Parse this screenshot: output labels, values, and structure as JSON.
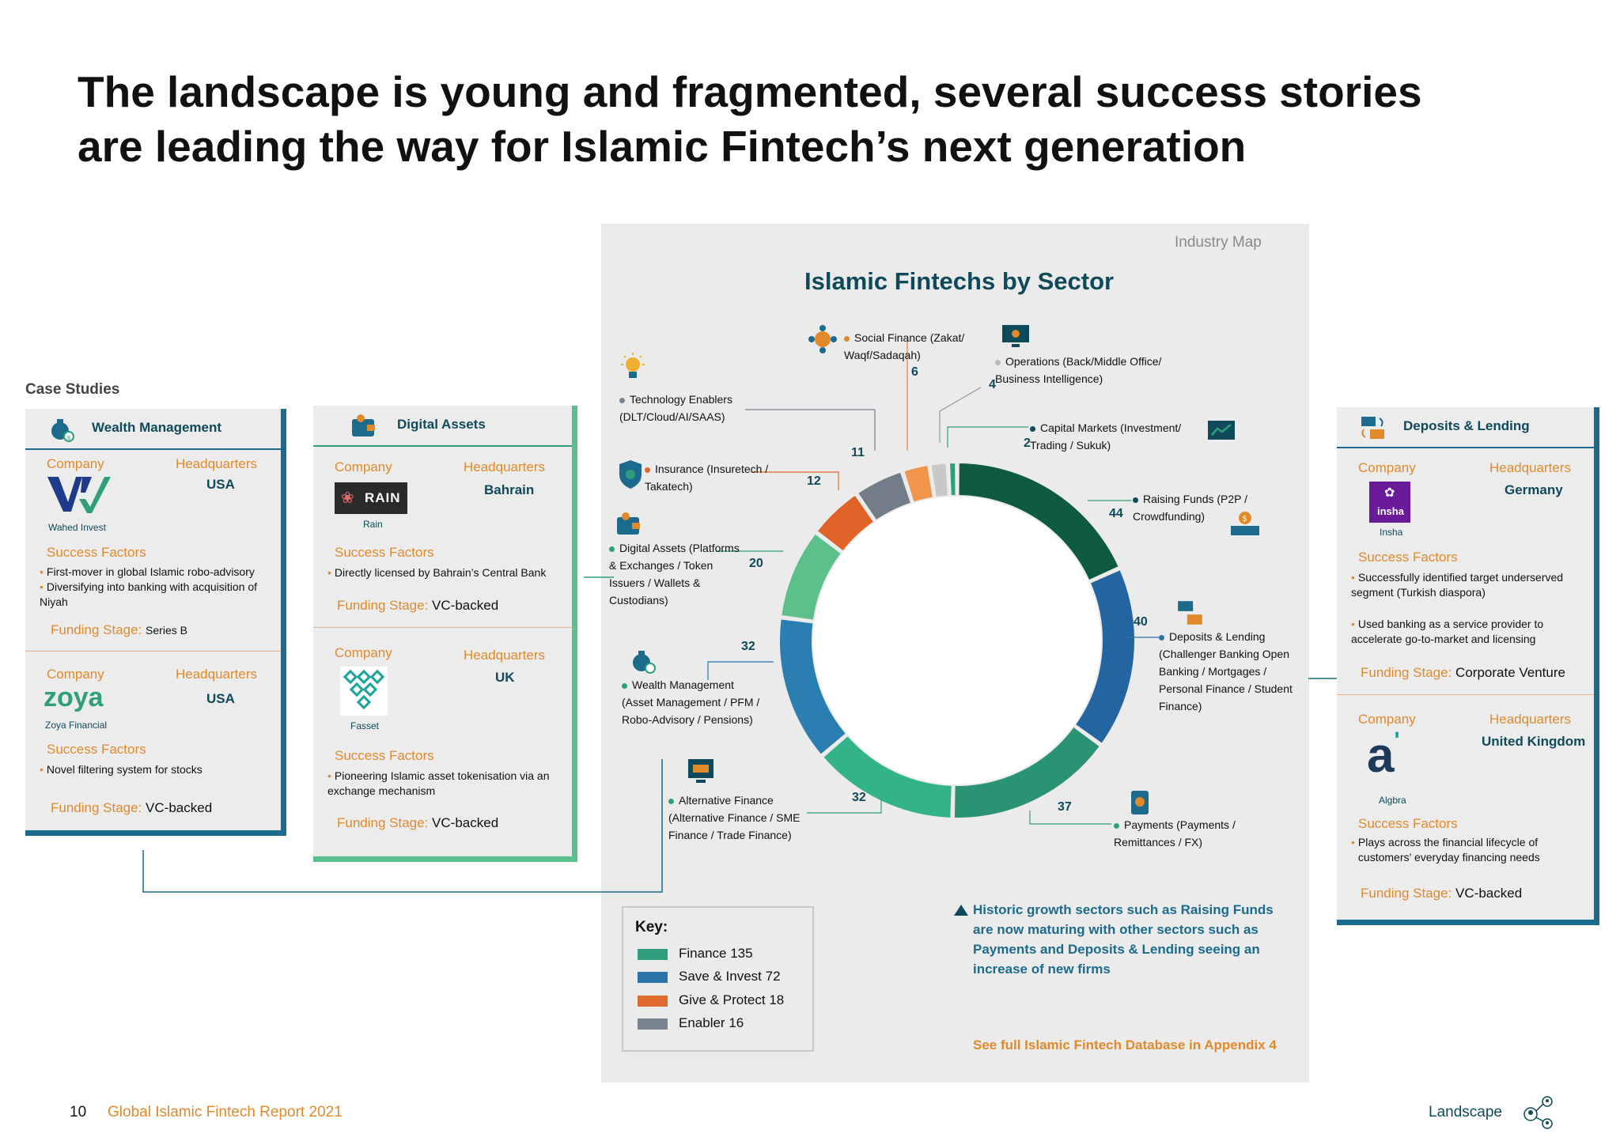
{
  "title": "The landscape is young and fragmented, several success stories are leading the way for Islamic Fintech’s next generation",
  "case_studies_label": "Case Studies",
  "colors": {
    "finance": "#2e9e7c",
    "save_invest": "#2a74a8",
    "give_protect": "#e06a2c",
    "enabler": "#7a8490",
    "orange": "#e08a2c",
    "teal_dark": "#0f4a5a"
  },
  "cards": {
    "wealth": {
      "header": "Wealth Management",
      "icon": "money-bag-icon",
      "company_label": "Company",
      "hq_label": "Headquarters",
      "success_label": "Success Factors",
      "funding_label": "Funding Stage:",
      "c1": {
        "name": "Wahed Invest",
        "hq": "USA",
        "factors": [
          "First-mover in global Islamic robo-advisory",
          "Diversifying into banking with acquisition of Niyah"
        ],
        "funding": "Series B"
      },
      "c2": {
        "name": "Zoya Financial",
        "logo_text": "zoya",
        "hq": "USA",
        "factors": [
          "Novel filtering system for stocks"
        ],
        "funding": "VC-backed"
      }
    },
    "digital": {
      "header": "Digital Assets",
      "icon": "wallet-icon",
      "company_label": "Company",
      "hq_label": "Headquarters",
      "success_label": "Success Factors",
      "funding_label": "Funding Stage:",
      "c1": {
        "name": "Rain",
        "logo_text": "RAIN",
        "hq": "Bahrain",
        "factors": [
          "Directly licensed by Bahrain’s Central Bank"
        ],
        "funding": "VC-backed"
      },
      "c2": {
        "name": "Fasset",
        "hq": "UK",
        "factors": [
          "Pioneering Islamic asset tokenisation via an exchange mechanism"
        ],
        "funding": "VC-backed"
      }
    },
    "deposits": {
      "header": "Deposits & Lending",
      "icon": "exchange-icon",
      "company_label": "Company",
      "hq_label": "Headquarters",
      "success_label": "Success Factors",
      "funding_label": "Funding Stage:",
      "c1": {
        "name": "Insha",
        "logo_text": "insha",
        "hq": "Germany",
        "factors": [
          "Successfully identified target underserved segment (Turkish diaspora)",
          "Used banking as a service provider to accelerate go-to-market and licensing"
        ],
        "funding": "Corporate Venture"
      },
      "c2": {
        "name": "Algbra",
        "logo_text": "a",
        "hq": "United Kingdom",
        "factors": [
          "Plays across the financial lifecycle of customers’ everyday financing needs"
        ],
        "funding": "VC-backed"
      }
    }
  },
  "map": {
    "label": "Industry Map",
    "title": "Islamic Fintechs by Sector",
    "labels": {
      "social": "Social Finance (Zakat/ Waqf/Sadaqah)",
      "operations": "Operations (Back/Middle Office/ Business Intelligence)",
      "tech": "Technology Enablers (DLT/Cloud/AI/SAAS)",
      "capital": "Capital Markets (Investment/ Trading / Sukuk)",
      "insurance": "Insurance (Insuretech / Takatech)",
      "raising": "Raising Funds (P2P / Crowdfunding)",
      "digital": "Digital Assets (Platforms & Exchanges / Token Issuers / Wallets & Custodians)",
      "deposits": "Deposits & Lending (Challenger Banking Open Banking / Mortgages / Personal Finance / Student Finance)",
      "wealth": "Wealth Management (Asset Management / PFM / Robo-Advisory / Pensions)",
      "alternative": "Alternative Finance (Alternative Finance / SME Finance / Trade Finance)",
      "payments": "Payments (Payments / Remittances / FX)"
    },
    "key": {
      "title": "Key:",
      "items": [
        "Finance 135",
        "Save & Invest 72",
        "Give & Protect 18",
        "Enabler 16"
      ]
    },
    "note": "Historic growth sectors such as Raising Funds are now maturing with other sectors such as Payments and Deposits & Lending seeing an increase of new firms",
    "appendix": "See full Islamic Fintech Database in Appendix 4"
  },
  "chart_data": {
    "type": "pie",
    "title": "Islamic Fintechs by Sector",
    "slices": [
      {
        "label": "Raising Funds",
        "value": 44,
        "group": "Finance"
      },
      {
        "label": "Deposits & Lending",
        "value": 40,
        "group": "Save & Invest"
      },
      {
        "label": "Payments",
        "value": 37,
        "group": "Finance"
      },
      {
        "label": "Alternative Finance",
        "value": 32,
        "group": "Finance"
      },
      {
        "label": "Wealth Management",
        "value": 32,
        "group": "Save & Invest"
      },
      {
        "label": "Digital Assets",
        "value": 20,
        "group": "Finance"
      },
      {
        "label": "Insurance",
        "value": 12,
        "group": "Give & Protect"
      },
      {
        "label": "Technology Enablers",
        "value": 11,
        "group": "Enabler"
      },
      {
        "label": "Social Finance",
        "value": 6,
        "group": "Give & Protect"
      },
      {
        "label": "Operations",
        "value": 4,
        "group": "Enabler"
      },
      {
        "label": "Capital Markets",
        "value": 2,
        "group": "Finance"
      }
    ]
  },
  "footer": {
    "page": "10",
    "report": "Global Islamic Fintech Report 2021",
    "section": "Landscape"
  }
}
